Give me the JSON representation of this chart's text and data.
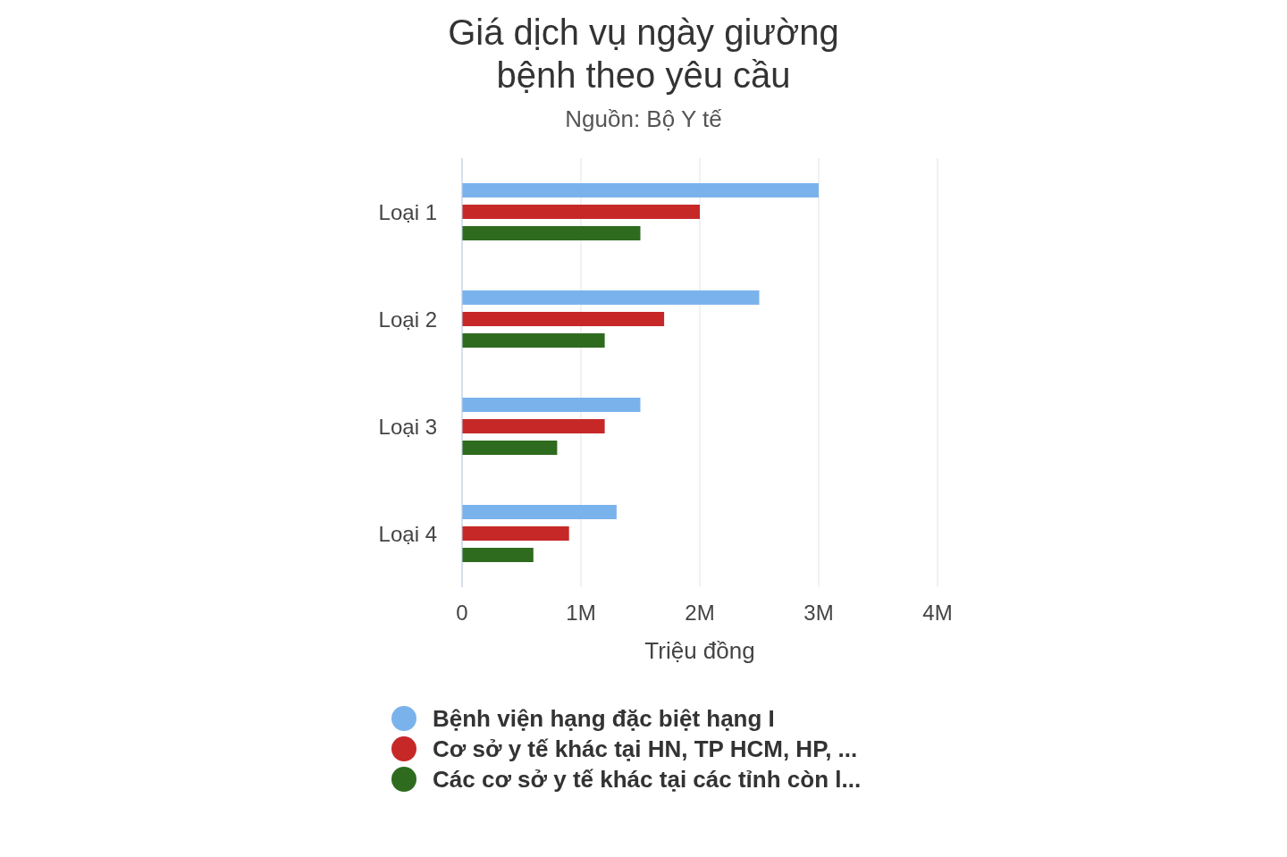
{
  "chart_data": {
    "type": "bar",
    "orientation": "horizontal",
    "title": "Giá dịch vụ ngày giường bệnh theo yêu cầu",
    "subtitle": "Nguồn: Bộ Y tế",
    "xlabel": "Triệu đồng",
    "categories": [
      "Loại 1",
      "Loại 2",
      "Loại 3",
      "Loại 4"
    ],
    "series": [
      {
        "name": "Bệnh viện hạng đặc biệt hạng I",
        "color": "#7ab3ec",
        "values": [
          3000000,
          2500000,
          1500000,
          1300000
        ]
      },
      {
        "name": "Cơ sở y tế khác tại HN, TP HCM, HP, ...",
        "color": "#c62828",
        "values": [
          2000000,
          1700000,
          1200000,
          900000
        ]
      },
      {
        "name": "Các cơ sở y tế khác tại các tỉnh còn l...",
        "color": "#2e6b1e",
        "values": [
          1500000,
          1200000,
          800000,
          600000
        ]
      }
    ],
    "xlim": [
      0,
      4000000
    ],
    "xticks": [
      0,
      {
        "value": 1000000,
        "label": "1M"
      },
      {
        "value": 2000000,
        "label": "2M"
      },
      {
        "value": 3000000,
        "label": "3M"
      },
      {
        "value": 4000000,
        "label": "4M"
      }
    ],
    "grid": "x",
    "legend": "bottom"
  }
}
